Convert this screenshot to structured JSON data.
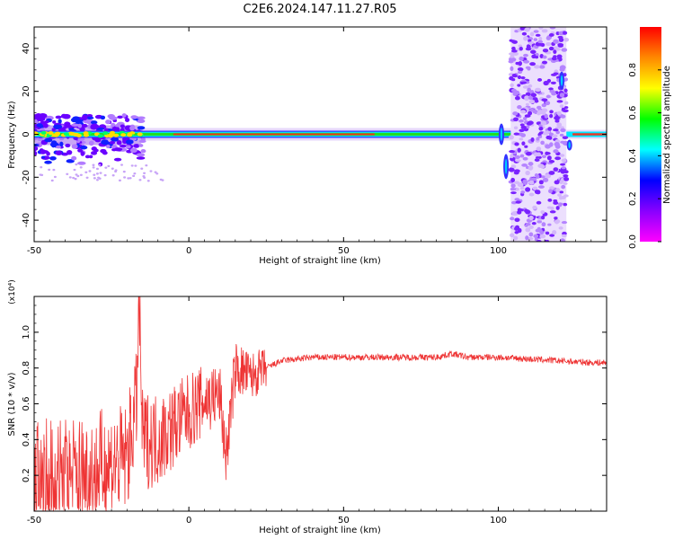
{
  "title": "C2E6.2024.147.11.27.R05",
  "chart_data": [
    {
      "type": "heatmap",
      "xlabel": "Height of straight line (km)",
      "ylabel": "Frequency (Hz)",
      "xlim": [
        -50,
        135
      ],
      "ylim": [
        -50,
        50
      ],
      "xticks": [
        -50,
        0,
        50,
        100
      ],
      "yticks": [
        -40,
        -20,
        0,
        20,
        40
      ],
      "colorbar": {
        "label": "Normalized spectral amplitude",
        "range": [
          0,
          1
        ],
        "ticks": [
          "0.0",
          "0.2",
          "0.4",
          "0.6",
          "0.8"
        ],
        "colors": [
          "#ff00ff",
          "#8800ff",
          "#0000ff",
          "#00ffff",
          "#00ff00",
          "#ffff00",
          "#ff8800",
          "#ff0000"
        ]
      },
      "regions": [
        {
          "desc": "dense scatter",
          "x": [
            -50,
            -15
          ],
          "y": [
            -15,
            7
          ]
        },
        {
          "desc": "narrow line",
          "x": [
            -15,
            104
          ],
          "y": [
            -2,
            2
          ]
        },
        {
          "desc": "broadband noise",
          "x": [
            104,
            122
          ],
          "y": [
            -50,
            50
          ]
        },
        {
          "desc": "narrow line",
          "x": [
            122,
            135
          ],
          "y": [
            -2,
            2
          ]
        }
      ]
    },
    {
      "type": "line",
      "xlabel": "Height of straight line (km)",
      "ylabel": "SNR (10 * v/v)",
      "multiplier": "(x10⁴)",
      "xlim": [
        -50,
        135
      ],
      "ylim": [
        0,
        1.2
      ],
      "xticks": [
        -50,
        0,
        50,
        100
      ],
      "yticks": [
        "0.2",
        "0.4",
        "0.6",
        "0.8",
        "1.0"
      ],
      "color": "#ee3333",
      "x": [
        -50,
        -40,
        -30,
        -20,
        -17,
        -16,
        -15,
        -10,
        0,
        5,
        10,
        12,
        15,
        20,
        25,
        30,
        40,
        50,
        60,
        70,
        80,
        85,
        90,
        100,
        110,
        120,
        130,
        135
      ],
      "y": [
        0.1,
        0.15,
        0.22,
        0.3,
        0.6,
        1.15,
        0.4,
        0.4,
        0.55,
        0.62,
        0.65,
        0.3,
        0.8,
        0.75,
        0.8,
        0.84,
        0.86,
        0.86,
        0.86,
        0.86,
        0.86,
        0.88,
        0.86,
        0.86,
        0.85,
        0.84,
        0.83,
        0.83
      ]
    }
  ]
}
